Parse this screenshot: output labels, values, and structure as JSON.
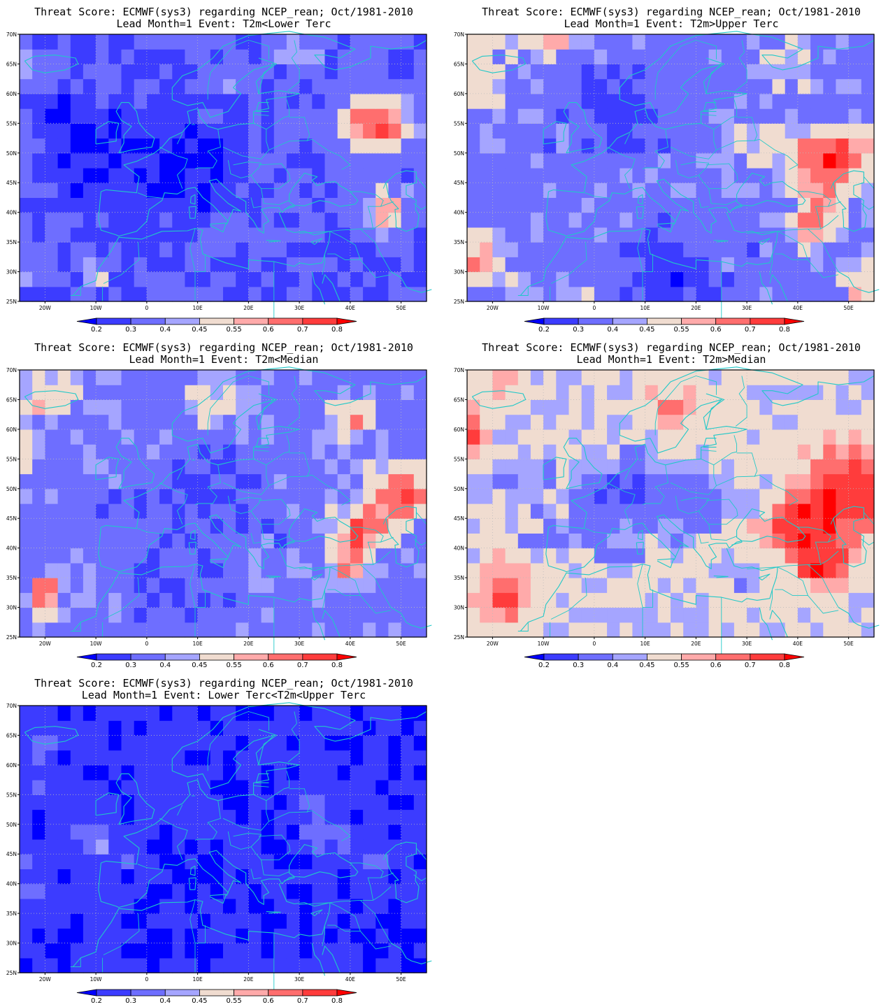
{
  "common": {
    "title_line1": "Threat Score: ECMWF(sys3) regarding NCEP_rean; Oct/1981-2010",
    "lat_labels": [
      "70N",
      "65N",
      "60N",
      "55N",
      "50N",
      "45N",
      "40N",
      "35N",
      "30N",
      "25N"
    ],
    "lon_labels": [
      "20W",
      "10W",
      "0",
      "10E",
      "20E",
      "30E",
      "40E",
      "50E"
    ],
    "legend": {
      "labels": [
        "0.2",
        "0.3",
        "0.4",
        "0.45",
        "0.55",
        "0.6",
        "0.7",
        "0.8"
      ],
      "colors": [
        "#0000ff",
        "#3c3cff",
        "#6e6eff",
        "#a5a5ff",
        "#f0dcd0",
        "#ffaaaa",
        "#ff6e6e",
        "#ff3c3c",
        "#ff0000"
      ]
    },
    "coast_color": "#20c8c8"
  },
  "panels": [
    {
      "title_line2": "Lead Month=1  Event: T2m<Lower Terc",
      "scheme": "lower"
    },
    {
      "title_line2": "Lead Month=1  Event: T2m>Upper Terc",
      "scheme": "upper"
    },
    {
      "title_line2": "Lead Month=1  Event: T2m<Median",
      "scheme": "belowmed"
    },
    {
      "title_line2": "Lead Month=1  Event: T2m>Median",
      "scheme": "abovemed"
    },
    {
      "title_line2": "Lead Month=1  Event: Lower Terc<T2m<Upper Terc",
      "scheme": "middle"
    }
  ]
}
